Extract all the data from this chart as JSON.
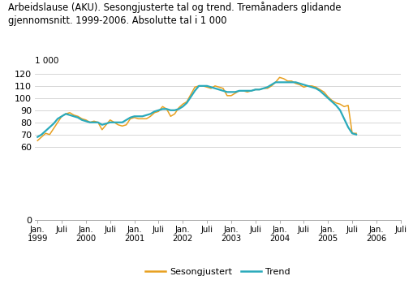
{
  "title_line1": "Arbeidslause (AKU). Sesongjusterte tal og trend. Tremånaders glidande",
  "title_line2": "gjennomsnitt. 1999-2006. Absolutte tal i 1 000",
  "ylabel_top": "1 000",
  "yticks": [
    0,
    60,
    70,
    80,
    90,
    100,
    110,
    120
  ],
  "ymin": 0,
  "ymax": 126,
  "background_color": "#ffffff",
  "grid_color": "#d0d0d0",
  "line_seasonal_color": "#e8a020",
  "line_trend_color": "#2aaabb",
  "legend_labels": [
    "Sesongjustert",
    "Trend"
  ],
  "seasonal_data": [
    65,
    68,
    71,
    70,
    75,
    80,
    85,
    87,
    88,
    86,
    85,
    83,
    82,
    80,
    81,
    80,
    74,
    78,
    82,
    80,
    78,
    77,
    78,
    83,
    84,
    83,
    83,
    83,
    85,
    88,
    89,
    93,
    91,
    85,
    87,
    92,
    95,
    97,
    103,
    109,
    110,
    110,
    109,
    108,
    110,
    109,
    108,
    102,
    102,
    104,
    106,
    106,
    105,
    106,
    107,
    107,
    108,
    108,
    110,
    113,
    117,
    116,
    114,
    114,
    112,
    111,
    109,
    110,
    110,
    109,
    107,
    105,
    101,
    98,
    96,
    95,
    93,
    94,
    71,
    71
  ],
  "trend_data": [
    68,
    70,
    73,
    76,
    79,
    83,
    85,
    87,
    86,
    85,
    84,
    82,
    81,
    80,
    80,
    80,
    78,
    79,
    80,
    80,
    80,
    80,
    82,
    84,
    85,
    85,
    85,
    86,
    87,
    89,
    90,
    91,
    91,
    90,
    90,
    91,
    93,
    96,
    101,
    106,
    110,
    110,
    110,
    109,
    108,
    107,
    106,
    105,
    105,
    105,
    106,
    106,
    106,
    106,
    107,
    107,
    108,
    109,
    111,
    113,
    113,
    113,
    113,
    113,
    113,
    112,
    111,
    110,
    109,
    108,
    106,
    103,
    100,
    97,
    94,
    90,
    83,
    76,
    71,
    70
  ]
}
